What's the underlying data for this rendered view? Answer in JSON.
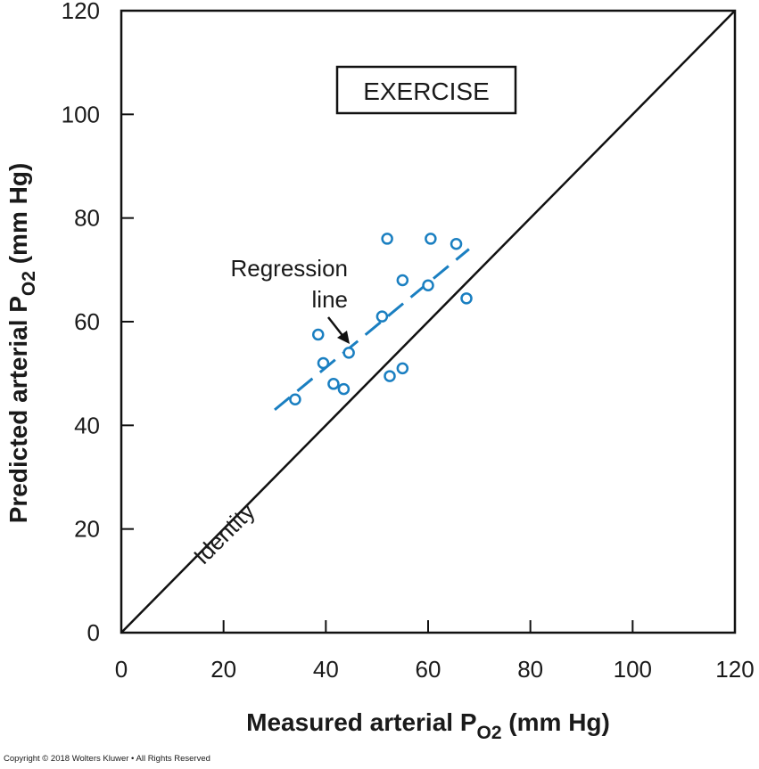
{
  "chart_data": {
    "type": "scatter",
    "xlabel": "Measured arterial P",
    "xlabel_sub": "O2",
    "xlabel_unit": " (mm Hg)",
    "ylabel": "Predicted arterial P",
    "ylabel_sub": "O2",
    "ylabel_unit": " (mm Hg)",
    "xlim": [
      0,
      120
    ],
    "ylim": [
      0,
      120
    ],
    "xticks": [
      0,
      20,
      40,
      60,
      80,
      100,
      120
    ],
    "yticks": [
      0,
      20,
      40,
      60,
      80,
      100,
      120
    ],
    "panel_label": "EXERCISE",
    "series": [
      {
        "marker": "open-circle",
        "color": "#1a7fc1",
        "points": [
          [
            34,
            45
          ],
          [
            38.5,
            57.5
          ],
          [
            39.5,
            52
          ],
          [
            41.5,
            48
          ],
          [
            43.5,
            47
          ],
          [
            44.5,
            54
          ],
          [
            51,
            61
          ],
          [
            52,
            76
          ],
          [
            52.5,
            49.5
          ],
          [
            55,
            68
          ],
          [
            55,
            51
          ],
          [
            60,
            67
          ],
          [
            60.5,
            76
          ],
          [
            65.5,
            75
          ],
          [
            67.5,
            64.5
          ]
        ]
      }
    ],
    "lines": [
      {
        "label": "Identity",
        "style": "solid",
        "color": "#111111",
        "from": [
          0,
          0
        ],
        "to": [
          120,
          120
        ]
      },
      {
        "label": "Regression line",
        "style": "dashed",
        "color": "#1a7fc1",
        "from": [
          30,
          43
        ],
        "to": [
          68,
          74
        ]
      }
    ],
    "annotations": {
      "identity": "Identity",
      "regression_line1": "Regression",
      "regression_line2": "line"
    },
    "grid": false
  },
  "copyright": "Copyright © 2018 Wolters Kluwer • All Rights Reserved"
}
